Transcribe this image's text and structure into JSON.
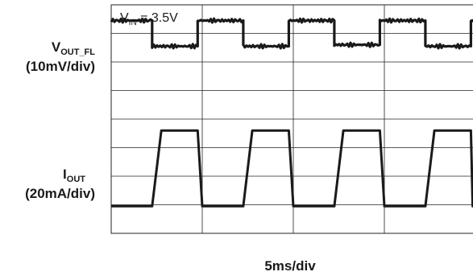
{
  "chart_data": {
    "type": "line",
    "title": "",
    "annotation": {
      "main": "V",
      "sub": "IN",
      "rest": " = 3.5V"
    },
    "xlabel": "5ms/div",
    "x_divisions": 4,
    "y_divisions": 8,
    "grid": true,
    "series": [
      {
        "name_main": "V",
        "name_sub": "OUT_FL",
        "scale_label": "(10mV/div)",
        "color": "#1a1a1a",
        "x": [
          0.0,
          0.45,
          0.45,
          0.95,
          0.95,
          1.45,
          1.45,
          1.95,
          1.95,
          2.45,
          2.45,
          2.95,
          2.95,
          3.45,
          3.45,
          3.95,
          3.95,
          4.0
        ],
        "y": [
          7.45,
          7.45,
          6.55,
          6.55,
          7.45,
          7.45,
          6.55,
          6.55,
          7.45,
          7.45,
          6.6,
          6.6,
          7.45,
          7.45,
          6.55,
          6.55,
          7.45,
          7.45
        ]
      },
      {
        "name_main": "I",
        "name_sub": "OUT",
        "scale_label": "(20mA/div)",
        "color": "#1a1a1a",
        "x": [
          0.0,
          0.45,
          0.55,
          0.95,
          1.0,
          1.45,
          1.55,
          1.95,
          2.0,
          2.45,
          2.55,
          2.95,
          3.0,
          3.45,
          3.55,
          3.95,
          3.97,
          4.0
        ],
        "y": [
          0.95,
          0.95,
          3.6,
          3.6,
          0.95,
          0.95,
          3.6,
          3.6,
          0.95,
          0.95,
          3.6,
          3.6,
          0.95,
          0.95,
          3.6,
          3.6,
          0.95,
          0.95
        ]
      }
    ]
  }
}
